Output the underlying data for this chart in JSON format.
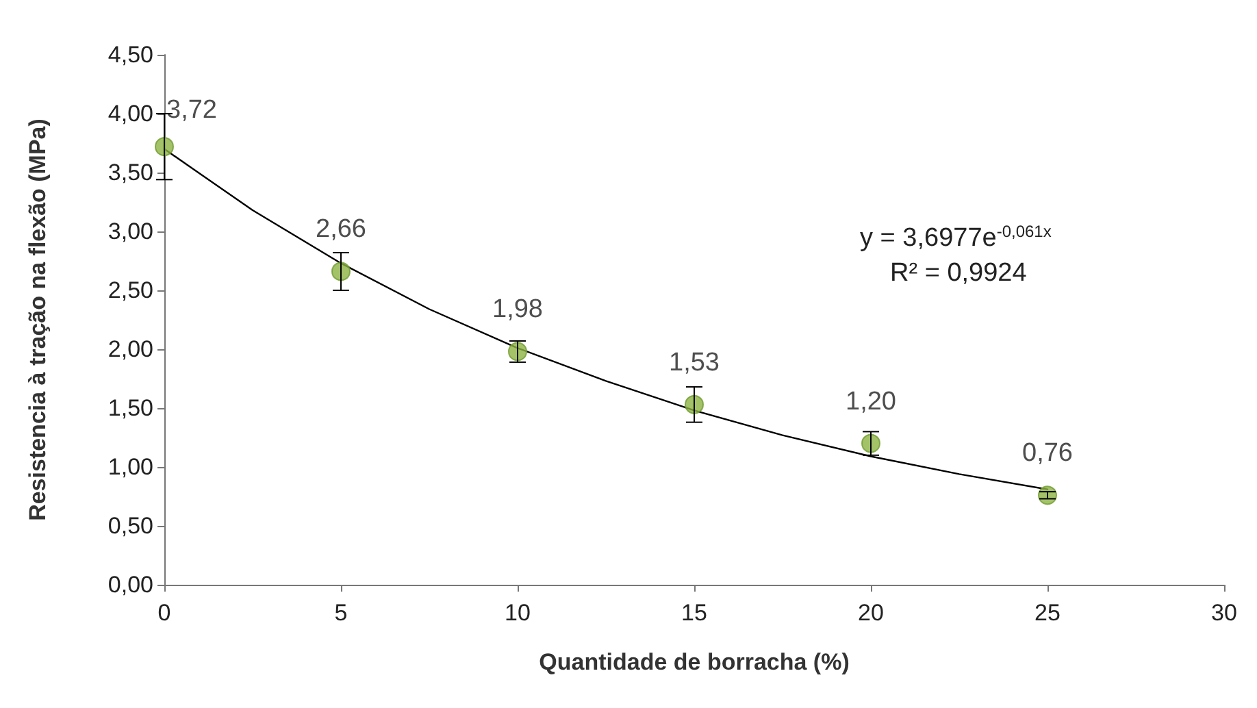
{
  "chart_data": {
    "type": "scatter",
    "xlabel": "Quantidade de borracha (%)",
    "ylabel": "Resistencia à tração na flexão (MPa)",
    "x": [
      0,
      5,
      10,
      15,
      20,
      25
    ],
    "series": [
      {
        "color": "#8db444",
        "values": [
          3.72,
          2.66,
          1.98,
          1.53,
          1.2,
          0.76
        ],
        "errors": [
          0.28,
          0.16,
          0.09,
          0.15,
          0.1,
          0.03
        ],
        "value_labels": [
          "3,72",
          "2,66",
          "1,98",
          "1,53",
          "1,20",
          "0,76"
        ],
        "marker": "circle"
      },
      {
        "type": "line",
        "color": "#000000",
        "x": [
          0,
          2.5,
          5,
          7.5,
          10,
          12.5,
          15,
          17.5,
          20,
          22.5,
          25
        ],
        "values": [
          3.7,
          3.18,
          2.73,
          2.34,
          2.01,
          1.73,
          1.48,
          1.27,
          1.09,
          0.94,
          0.81
        ],
        "marker": "none",
        "line_style": "solid"
      }
    ],
    "xlim": [
      0,
      30
    ],
    "xticks": [
      0,
      5,
      10,
      15,
      20,
      25,
      30
    ],
    "ylim": [
      0,
      4.5
    ],
    "yticks": [
      {
        "value": 0,
        "label": "0,00"
      },
      {
        "value": 0.5,
        "label": "0,50"
      },
      {
        "value": 1,
        "label": "1,00"
      },
      {
        "value": 1.5,
        "label": "1,50"
      },
      {
        "value": 2,
        "label": "2,00"
      },
      {
        "value": 2.5,
        "label": "2,50"
      },
      {
        "value": 3,
        "label": "3,00"
      },
      {
        "value": 3.5,
        "label": "3,50"
      },
      {
        "value": 4,
        "label": "4,00"
      },
      {
        "value": 4.5,
        "label": "4,50"
      }
    ],
    "grid": false,
    "annotations": [
      "y = 3,6977e$^{-0,061x}$",
      "R² = 0,9924"
    ]
  }
}
